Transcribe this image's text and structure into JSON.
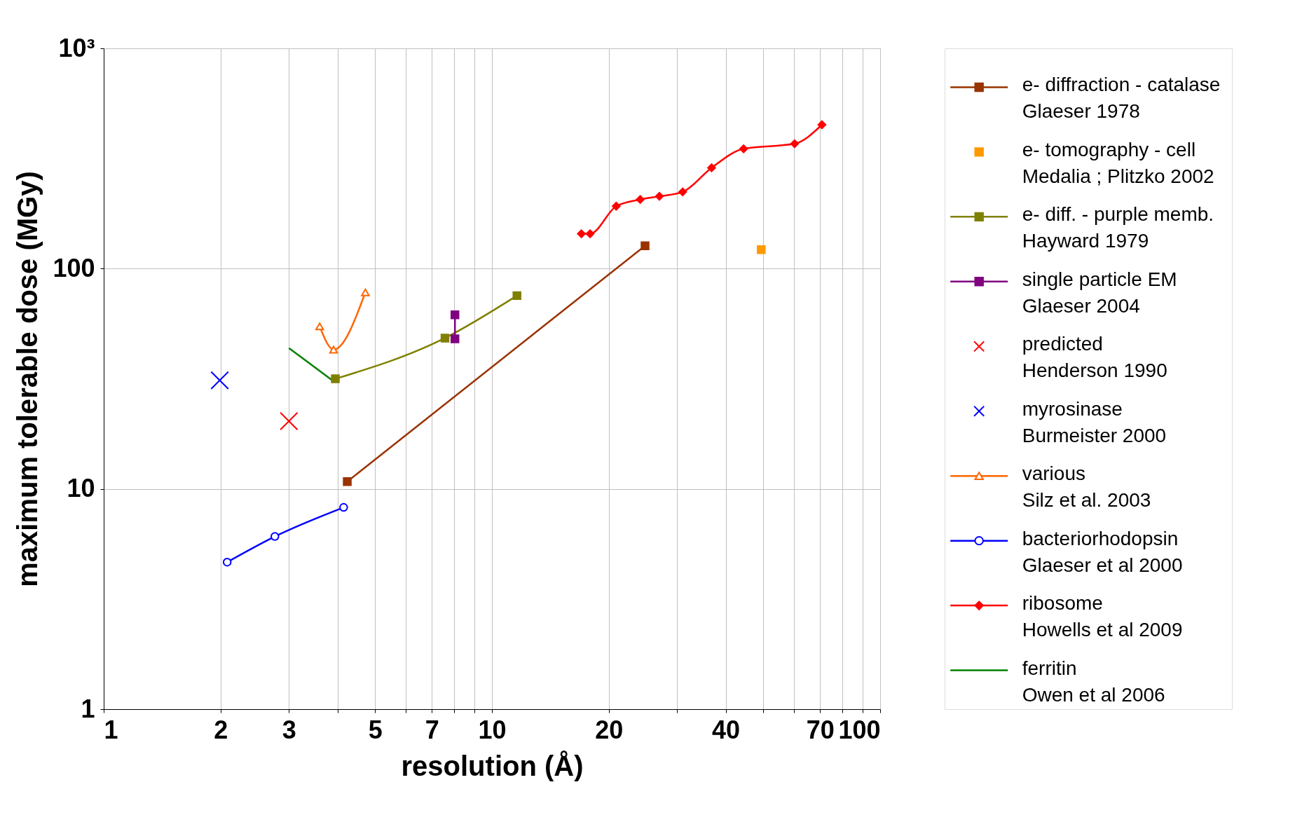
{
  "chart_data": {
    "type": "line",
    "xlabel": "resolution (Å)",
    "ylabel": "maximum tolerable dose (MGy)",
    "log": "xy",
    "grid": true,
    "legend": "right",
    "xlim": [
      1,
      100
    ],
    "ylim": [
      1,
      1000
    ],
    "xticks": [
      1,
      2,
      3,
      {
        "value": 4,
        "label": null
      },
      5,
      {
        "value": 6,
        "label": null
      },
      7,
      {
        "value": 8,
        "label": null
      },
      {
        "value": 9,
        "label": null
      },
      10,
      20,
      {
        "value": 30,
        "label": null
      },
      40,
      {
        "value": 50,
        "label": null
      },
      {
        "value": 60,
        "label": null
      },
      70,
      {
        "value": 80,
        "label": null
      },
      {
        "value": 90,
        "label": null
      },
      100
    ],
    "yticks": [
      1,
      10,
      100,
      {
        "value": 1000,
        "label": "10³"
      }
    ],
    "series": [
      {
        "name": "e- diffraction - catalase\nGlaeser 1978",
        "color": "#993300",
        "marker": "square",
        "x": [
          4.24,
          24.8
        ],
        "values": [
          10.8,
          127
        ]
      },
      {
        "name": "e- tomography - cell\nMedalia ; Plitzko 2002",
        "type": "scatter",
        "color": "#ff9900",
        "marker": "square",
        "x": [
          49.4
        ],
        "values": [
          122
        ]
      },
      {
        "name": "e- diff. - purple memb.\nHayward 1979",
        "color": "#808000",
        "marker": "square",
        "x": [
          3.95,
          7.57,
          11.6
        ],
        "values": [
          31.6,
          48.4,
          75.4
        ]
      },
      {
        "name": "single particle EM\nGlaeser 2004",
        "color": "#800080",
        "marker": "square",
        "x": [
          8.03,
          8.03
        ],
        "values": [
          61.7,
          48.0
        ]
      },
      {
        "name": "predicted\nHenderson 1990",
        "type": "scatter",
        "color": "#ff0000",
        "marker": "cross",
        "x": [
          3.0
        ],
        "values": [
          20.3
        ]
      },
      {
        "name": "myrosinase\nBurmeister 2000",
        "type": "scatter",
        "color": "#0000ff",
        "marker": "cross",
        "x": [
          1.99
        ],
        "values": [
          31.1
        ]
      },
      {
        "name": "various\nSilz et al. 2003",
        "color": "#ff6600",
        "marker": "triangle",
        "x": [
          3.6,
          3.91,
          4.72
        ],
        "values": [
          54.7,
          42.9,
          78
        ]
      },
      {
        "name": "bacteriorhodopsin\nGlaeser et al 2000",
        "color": "#0000ff",
        "marker": "circle",
        "x": [
          2.08,
          2.76,
          4.15
        ],
        "values": [
          4.65,
          6.08,
          8.24
        ]
      },
      {
        "name": "ribosome\nHowells et al 2009",
        "color": "#ff0000",
        "marker": "diamond",
        "x": [
          17.0,
          17.9,
          20.9,
          24.1,
          27.0,
          31.0,
          36.8,
          44.5,
          60.2,
          70.8
        ],
        "values": [
          144,
          144,
          192,
          206,
          213,
          223,
          287,
          350,
          369,
          450
        ]
      },
      {
        "name": "ferritin\nOwen et al 2006",
        "color": "#008000",
        "marker": "none",
        "x": [
          3.0,
          3.88
        ],
        "values": [
          43.6,
          31.1
        ]
      }
    ]
  }
}
